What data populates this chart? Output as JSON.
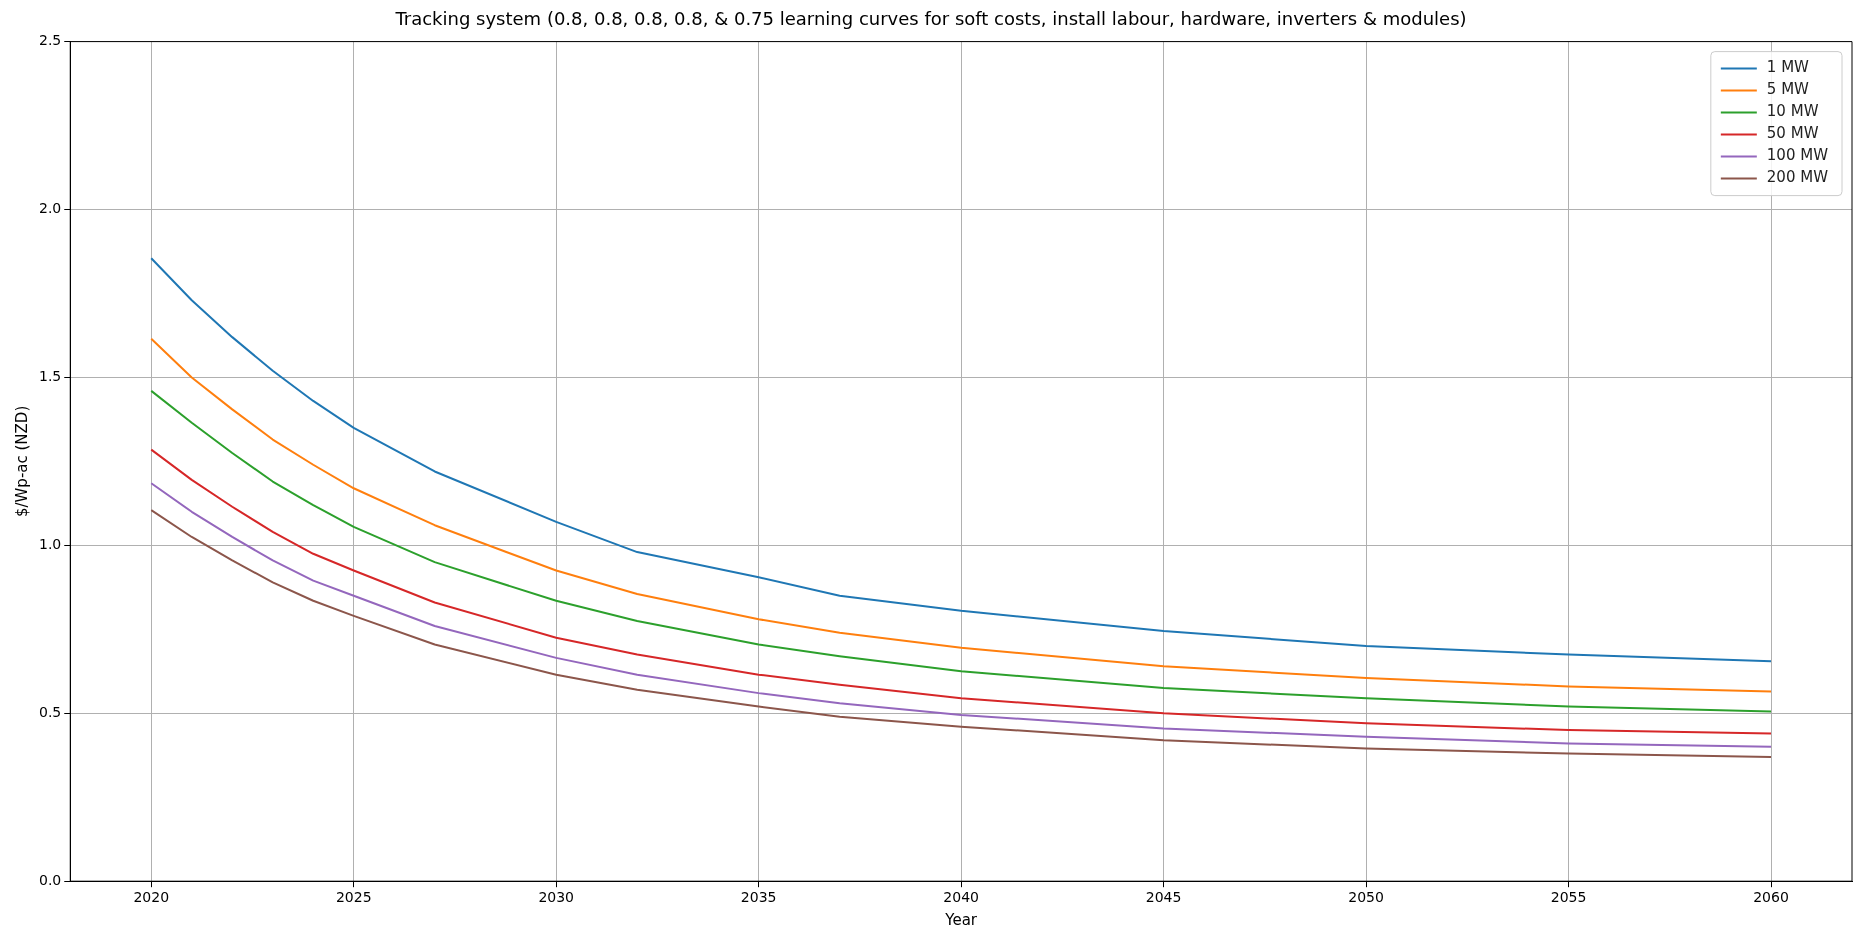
{
  "chart_data": {
    "type": "line",
    "title": "Tracking system (0.8, 0.8, 0.8, 0.8, & 0.75 learning curves for soft costs, install labour, hardware, inverters & modules)",
    "xlabel": "Year",
    "ylabel": "$/Wp-ac (NZD)",
    "x": [
      2020,
      2021,
      2022,
      2023,
      2024,
      2025,
      2027,
      2030,
      2032,
      2035,
      2037,
      2040,
      2045,
      2050,
      2055,
      2060
    ],
    "series": [
      {
        "name": "1 MW",
        "color": "#1f77b4",
        "values": [
          1.855,
          1.73,
          1.62,
          1.52,
          1.43,
          1.35,
          1.22,
          1.07,
          0.98,
          0.905,
          0.85,
          0.805,
          0.745,
          0.7,
          0.675,
          0.655
        ]
      },
      {
        "name": "5 MW",
        "color": "#ff7f0e",
        "values": [
          1.615,
          1.5,
          1.405,
          1.315,
          1.24,
          1.17,
          1.06,
          0.925,
          0.855,
          0.78,
          0.74,
          0.695,
          0.64,
          0.605,
          0.58,
          0.565
        ]
      },
      {
        "name": "10 MW",
        "color": "#2ca02c",
        "values": [
          1.46,
          1.365,
          1.275,
          1.19,
          1.12,
          1.055,
          0.95,
          0.835,
          0.775,
          0.705,
          0.67,
          0.625,
          0.575,
          0.545,
          0.52,
          0.505
        ]
      },
      {
        "name": "50 MW",
        "color": "#d62728",
        "values": [
          1.285,
          1.195,
          1.115,
          1.04,
          0.975,
          0.925,
          0.83,
          0.725,
          0.675,
          0.615,
          0.585,
          0.545,
          0.5,
          0.47,
          0.45,
          0.44
        ]
      },
      {
        "name": "100 MW",
        "color": "#9467bd",
        "values": [
          1.185,
          1.1,
          1.025,
          0.955,
          0.895,
          0.85,
          0.76,
          0.665,
          0.615,
          0.56,
          0.53,
          0.495,
          0.455,
          0.43,
          0.41,
          0.4
        ]
      },
      {
        "name": "200 MW",
        "color": "#8c564b",
        "values": [
          1.105,
          1.025,
          0.955,
          0.89,
          0.835,
          0.79,
          0.705,
          0.615,
          0.57,
          0.52,
          0.49,
          0.46,
          0.42,
          0.395,
          0.38,
          0.37
        ]
      }
    ],
    "xlim": [
      2018,
      2062
    ],
    "xticks": [
      2020,
      2025,
      2030,
      2035,
      2040,
      2045,
      2050,
      2055,
      2060
    ],
    "ylim": [
      0,
      2.5
    ],
    "yticks": [
      {
        "value": 0,
        "label": "0.0"
      },
      0.5,
      {
        "value": 1,
        "label": "1.0"
      },
      1.5,
      {
        "value": 2,
        "label": "2.0"
      },
      2.5
    ],
    "grid": true,
    "legend": "top right",
    "marker": "none",
    "line_style": "solid"
  }
}
